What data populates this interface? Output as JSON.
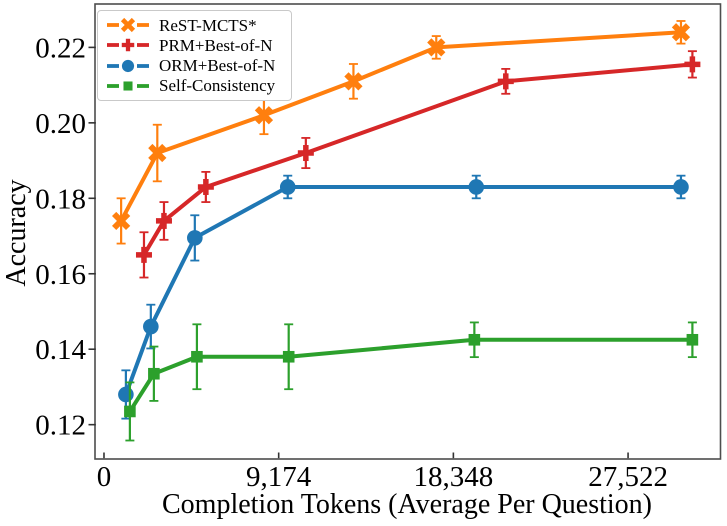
{
  "chart_data": {
    "type": "line",
    "title": "",
    "xlabel": "Completion Tokens (Average Per Question)",
    "ylabel": "Accuracy",
    "xlim": [
      -472,
      32376
    ],
    "ylim": [
      0.1109,
      0.2315
    ],
    "grid": false,
    "legend_position": "upper-left",
    "axis_color": "#4d4d4d",
    "x_ticks": [
      {
        "value": 0,
        "label": "0"
      },
      {
        "value": 9174,
        "label": "9,174"
      },
      {
        "value": 18348,
        "label": "18,348"
      },
      {
        "value": 27522,
        "label": "27,522"
      }
    ],
    "y_ticks": [
      {
        "value": 0.12,
        "label": "0.12"
      },
      {
        "value": 0.14,
        "label": "0.14"
      },
      {
        "value": 0.16,
        "label": "0.16"
      },
      {
        "value": 0.18,
        "label": "0.18"
      },
      {
        "value": 0.2,
        "label": "0.20"
      },
      {
        "value": 0.22,
        "label": "0.22"
      }
    ],
    "series": [
      {
        "name": "ReST-MCTS*",
        "color": "#ff7f0e",
        "marker": "x",
        "x": [
          900,
          2800,
          8400,
          13100,
          17450,
          30300
        ],
        "y": [
          0.174,
          0.192,
          0.202,
          0.211,
          0.22,
          0.224
        ],
        "yerr": [
          0.006,
          0.0075,
          0.005,
          0.0046,
          0.003,
          0.003
        ]
      },
      {
        "name": "PRM+Best-of-N",
        "color": "#d62728",
        "marker": "plus",
        "x": [
          2100,
          3150,
          5350,
          10600,
          21100,
          30900
        ],
        "y": [
          0.165,
          0.174,
          0.183,
          0.192,
          0.211,
          0.2155
        ],
        "yerr": [
          0.006,
          0.005,
          0.004,
          0.004,
          0.0033,
          0.0035
        ]
      },
      {
        "name": "ORM+Best-of-N",
        "color": "#1f77b4",
        "marker": "circle",
        "x": [
          1150,
          2460,
          4770,
          9650,
          19550,
          30300
        ],
        "y": [
          0.128,
          0.146,
          0.1695,
          0.183,
          0.183,
          0.183
        ],
        "yerr": [
          0.0064,
          0.0058,
          0.006,
          0.003,
          0.003,
          0.003
        ]
      },
      {
        "name": "Self-Consistency",
        "color": "#2ca02c",
        "marker": "square",
        "x": [
          1360,
          2620,
          4880,
          9700,
          19450,
          30900
        ],
        "y": [
          0.1235,
          0.1335,
          0.138,
          0.138,
          0.1425,
          0.1425
        ],
        "yerr": [
          0.0077,
          0.0072,
          0.0086,
          0.0086,
          0.0046,
          0.0046
        ]
      }
    ]
  }
}
